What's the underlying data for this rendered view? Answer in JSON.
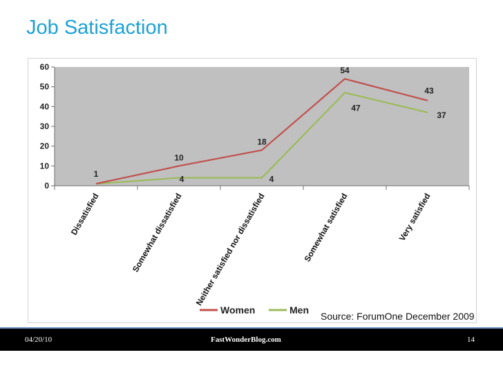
{
  "slide": {
    "title": "Job Satisfaction",
    "source": "Source: ForumOne December 2009"
  },
  "footer": {
    "date": "04/20/10",
    "site": "FastWonderBlog.com",
    "page": "14"
  },
  "colors": {
    "title": "#1ba1d6",
    "plot_bg": "#c0c0c0",
    "women": "#c0504d",
    "men": "#9bbb59"
  },
  "chart_data": {
    "type": "line",
    "title": "",
    "xlabel": "",
    "ylabel": "",
    "ylim": [
      0,
      60
    ],
    "yticks": [
      0,
      10,
      20,
      30,
      40,
      50,
      60
    ],
    "categories": [
      "Dissatisfied",
      "Somewhat dissatisfied",
      "Neither satisfied nor dissatisfied",
      "Somewhat satisfied",
      "Very satisfied"
    ],
    "series": [
      {
        "name": "Women",
        "color": "#c0504d",
        "values": [
          1,
          10,
          18,
          54,
          43
        ],
        "labels": [
          "1",
          "10",
          "18",
          "54",
          "43"
        ]
      },
      {
        "name": "Men",
        "color": "#9bbb59",
        "values": [
          1,
          4,
          4,
          47,
          37
        ],
        "labels": [
          "",
          "4",
          "4",
          "47",
          "37"
        ]
      }
    ],
    "grid": false,
    "legend": "bottom"
  }
}
